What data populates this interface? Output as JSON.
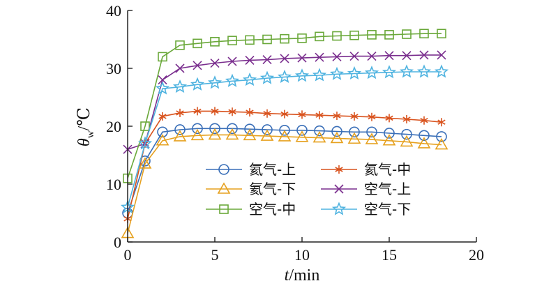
{
  "chart_data": {
    "type": "line",
    "xlabel_symbol": "t",
    "xlabel_unit": "/min",
    "ylabel_symbol": "θ",
    "ylabel_sub": "w",
    "ylabel_unit": "/℃",
    "xlim": [
      0,
      20
    ],
    "ylim": [
      0,
      40
    ],
    "xticks": [
      0,
      5,
      10,
      15,
      20
    ],
    "yticks": [
      0,
      10,
      20,
      30,
      40
    ],
    "grid": false,
    "legend_position": "bottom-center",
    "series": [
      {
        "name": "氦气-上",
        "color": "#3a6fb8",
        "marker": "circle",
        "x": [
          0,
          1,
          2,
          3,
          4,
          5,
          6,
          7,
          8,
          9,
          10,
          11,
          12,
          13,
          14,
          15,
          16,
          17,
          18
        ],
        "values": [
          5,
          14,
          19,
          19.4,
          19.6,
          19.6,
          19.6,
          19.5,
          19.4,
          19.3,
          19.3,
          19.2,
          19.1,
          19.0,
          19.0,
          18.8,
          18.6,
          18.4,
          18.2
        ]
      },
      {
        "name": "氦气-中",
        "color": "#d9531e",
        "marker": "asterisk",
        "x": [
          0,
          1,
          2,
          3,
          4,
          5,
          6,
          7,
          8,
          9,
          10,
          11,
          12,
          13,
          14,
          15,
          16,
          17,
          18
        ],
        "values": [
          4,
          17,
          21.7,
          22.3,
          22.6,
          22.6,
          22.5,
          22.4,
          22.2,
          22.1,
          22.0,
          21.9,
          21.8,
          21.7,
          21.6,
          21.4,
          21.2,
          21.0,
          20.7
        ]
      },
      {
        "name": "氦气-下",
        "color": "#e6a11f",
        "marker": "triangle",
        "x": [
          0,
          1,
          2,
          3,
          4,
          5,
          6,
          7,
          8,
          9,
          10,
          11,
          12,
          13,
          14,
          15,
          16,
          17,
          18
        ],
        "values": [
          1.5,
          13.5,
          17.5,
          18.2,
          18.4,
          18.5,
          18.5,
          18.4,
          18.3,
          18.2,
          18.1,
          18.0,
          17.9,
          17.8,
          17.7,
          17.5,
          17.3,
          17.0,
          16.8
        ]
      },
      {
        "name": "空气-上",
        "color": "#7a2e8e",
        "marker": "x",
        "x": [
          0,
          1,
          2,
          3,
          4,
          5,
          6,
          7,
          8,
          9,
          10,
          11,
          12,
          13,
          14,
          15,
          16,
          17,
          18
        ],
        "values": [
          16,
          17,
          28,
          30,
          30.5,
          30.9,
          31.2,
          31.4,
          31.5,
          31.7,
          31.8,
          31.9,
          32.0,
          32.1,
          32.1,
          32.2,
          32.2,
          32.3,
          32.3
        ]
      },
      {
        "name": "空气-中",
        "color": "#6aa83a",
        "marker": "square",
        "x": [
          0,
          1,
          2,
          3,
          4,
          5,
          6,
          7,
          8,
          9,
          10,
          11,
          12,
          13,
          14,
          15,
          16,
          17,
          18
        ],
        "values": [
          11,
          20,
          32,
          34,
          34.3,
          34.6,
          34.8,
          34.9,
          35.0,
          35.1,
          35.2,
          35.5,
          35.6,
          35.7,
          35.8,
          35.8,
          35.9,
          36.0,
          36.0
        ]
      },
      {
        "name": "空气-下",
        "color": "#4fb3e0",
        "marker": "star",
        "x": [
          0,
          1,
          2,
          3,
          4,
          5,
          6,
          7,
          8,
          9,
          10,
          11,
          12,
          13,
          14,
          15,
          16,
          17,
          18
        ],
        "values": [
          6,
          17,
          26.5,
          26.8,
          27.2,
          27.5,
          27.8,
          28.0,
          28.3,
          28.5,
          28.7,
          28.8,
          29.0,
          29.1,
          29.2,
          29.3,
          29.4,
          29.4,
          29.4
        ]
      }
    ]
  }
}
